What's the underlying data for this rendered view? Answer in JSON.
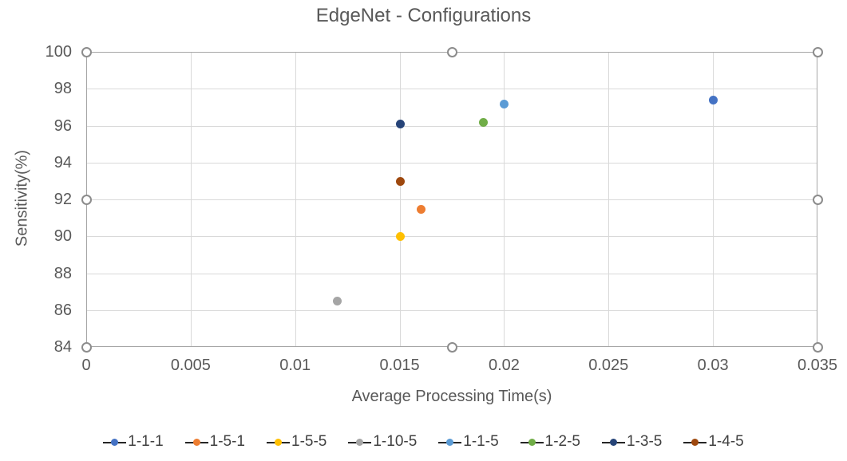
{
  "chart_data": {
    "type": "scatter",
    "title": "EdgeNet - Configurations",
    "xlabel": "Average Processing Time(s)",
    "ylabel": "Sensitivity(%)",
    "xlim": [
      0,
      0.035
    ],
    "ylim": [
      84,
      100
    ],
    "x_ticks": [
      0,
      0.005,
      0.01,
      0.015,
      0.02,
      0.025,
      0.03,
      0.035
    ],
    "x_tick_labels": [
      "0",
      "0.005",
      "0.01",
      "0.015",
      "0.02",
      "0.025",
      "0.03",
      "0.035"
    ],
    "y_ticks": [
      84,
      86,
      88,
      90,
      92,
      94,
      96,
      98,
      100
    ],
    "y_tick_labels": [
      "84",
      "86",
      "88",
      "90",
      "92",
      "94",
      "96",
      "98",
      "100"
    ],
    "grid": true,
    "legend_position": "bottom",
    "series": [
      {
        "name": "1-1-1",
        "color": "#4472c4",
        "points": [
          [
            0.03,
            97.4
          ]
        ]
      },
      {
        "name": "1-5-1",
        "color": "#ed7d31",
        "points": [
          [
            0.016,
            91.5
          ]
        ]
      },
      {
        "name": "1-5-5",
        "color": "#ffc000",
        "points": [
          [
            0.015,
            90.0
          ]
        ]
      },
      {
        "name": "1-10-5",
        "color": "#a5a5a5",
        "points": [
          [
            0.012,
            86.5
          ]
        ]
      },
      {
        "name": "1-1-5",
        "color": "#5b9bd5",
        "points": [
          [
            0.02,
            97.2
          ]
        ]
      },
      {
        "name": "1-2-5",
        "color": "#70ad47",
        "points": [
          [
            0.019,
            96.2
          ]
        ]
      },
      {
        "name": "1-3-5",
        "color": "#264478",
        "points": [
          [
            0.015,
            96.1
          ]
        ]
      },
      {
        "name": "1-4-5",
        "color": "#9e480e",
        "points": [
          [
            0.015,
            93.0
          ]
        ]
      }
    ]
  },
  "colors": {
    "title_text": "#595959",
    "tick_text": "#595959",
    "legend_text": "#404040",
    "gridline": "#d9d9d9",
    "plot_border": "#a6a6a6",
    "selection_handle_fill": "#ffffff",
    "selection_handle_ring": "#8c8c8c",
    "legend_key_line": "#262626",
    "background": "#ffffff"
  }
}
